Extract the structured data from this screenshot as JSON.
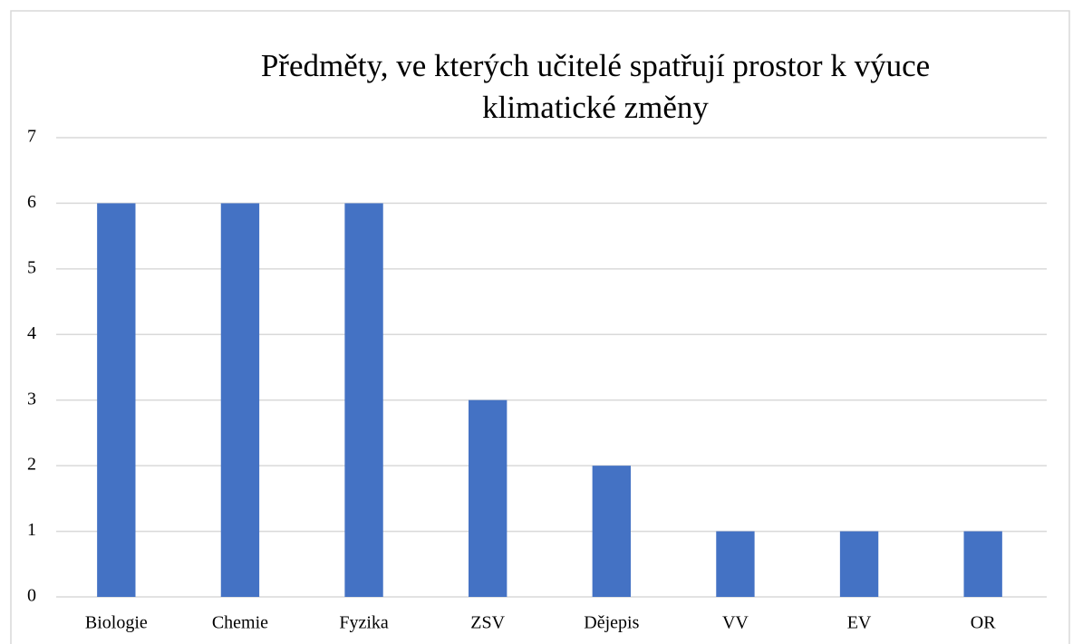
{
  "chart_data": {
    "type": "bar",
    "title": "Předměty, ve kterých učitelé spatřují prostor k výuce klimatické změny",
    "categories": [
      "Biologie",
      "Chemie",
      "Fyzika",
      "ZSV",
      "Dějepis",
      "VV",
      "EV",
      "OR"
    ],
    "values": [
      6,
      6,
      6,
      3,
      2,
      1,
      1,
      1
    ],
    "color": "#4472c4",
    "ylim": [
      0,
      7
    ],
    "yticks": [
      0,
      1,
      2,
      3,
      4,
      5,
      6,
      7
    ],
    "grid": true
  }
}
